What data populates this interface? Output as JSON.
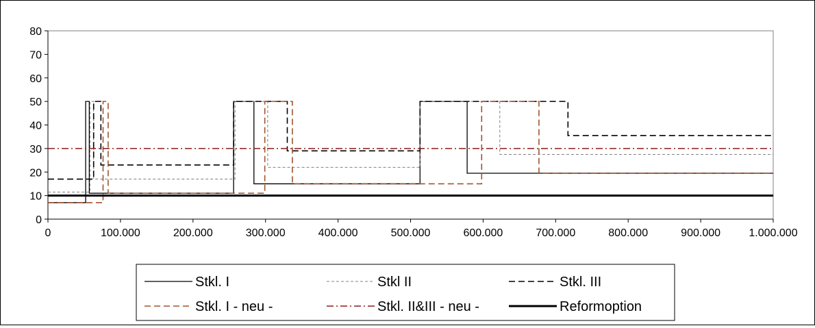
{
  "chart_data": {
    "type": "line",
    "title": "",
    "xlabel": "",
    "ylabel": "",
    "xlim": [
      0,
      1000000
    ],
    "ylim": [
      0,
      80
    ],
    "x_ticks": [
      0,
      100000,
      200000,
      300000,
      400000,
      500000,
      600000,
      700000,
      800000,
      900000,
      1000000
    ],
    "x_tick_labels": [
      "0",
      "100.000",
      "200.000",
      "300.000",
      "400.000",
      "500.000",
      "600.000",
      "700.000",
      "800.000",
      "900.000",
      "1.000.000"
    ],
    "y_ticks": [
      0,
      10,
      20,
      30,
      40,
      50,
      60,
      70,
      80
    ],
    "y_tick_labels": [
      "0",
      "10",
      "20",
      "30",
      "40",
      "50",
      "60",
      "70",
      "80"
    ],
    "grid": false,
    "legend_position": "bottom",
    "series": [
      {
        "name": "Stkl. I",
        "color": "#000000",
        "dash": "solid",
        "x": [
          0,
          52000,
          52000,
          57000,
          57000,
          256000,
          256000,
          284000,
          284000,
          513000,
          513000,
          578000,
          578000,
          1000000
        ],
        "y": [
          7,
          7,
          50,
          50,
          11,
          11,
          50,
          50,
          15,
          15,
          50,
          50,
          19.5,
          19.5
        ]
      },
      {
        "name": "Stkl II",
        "color": "#808080",
        "dash": "dashed-fine",
        "x": [
          0,
          58000,
          58000,
          63000,
          63000,
          258000,
          258000,
          303000,
          303000,
          513000,
          513000,
          623000,
          623000,
          1000000
        ],
        "y": [
          11.5,
          11.5,
          50,
          50,
          17,
          17,
          50,
          50,
          22,
          22,
          50,
          50,
          27.5,
          27.5
        ]
      },
      {
        "name": "Stkl. III",
        "color": "#000000",
        "dash": "dashed",
        "x": [
          0,
          63000,
          63000,
          73000,
          73000,
          256000,
          256000,
          330000,
          330000,
          513000,
          513000,
          717000,
          717000,
          1000000
        ],
        "y": [
          17,
          17,
          50,
          50,
          23,
          23,
          50,
          50,
          29,
          29,
          50,
          50,
          35.5,
          35.5
        ]
      },
      {
        "name": "Stkl. I - neu -",
        "color": "#a0522d",
        "dash": "dashed",
        "x": [
          0,
          76000,
          76000,
          83000,
          83000,
          299000,
          299000,
          337000,
          337000,
          598000,
          598000,
          677000,
          677000,
          1000000
        ],
        "y": [
          7,
          7,
          50,
          50,
          11,
          11,
          50,
          50,
          15,
          15,
          50,
          50,
          19.5,
          19.5
        ]
      },
      {
        "name": "Stkl. II&III - neu -",
        "color": "#8b1a1a",
        "dash": "dashdot",
        "x": [
          0,
          1000000
        ],
        "y": [
          30,
          30
        ]
      },
      {
        "name": "Reformoption",
        "color": "#000000",
        "dash": "solid-thick",
        "x": [
          0,
          1000000
        ],
        "y": [
          10,
          10
        ]
      }
    ]
  }
}
